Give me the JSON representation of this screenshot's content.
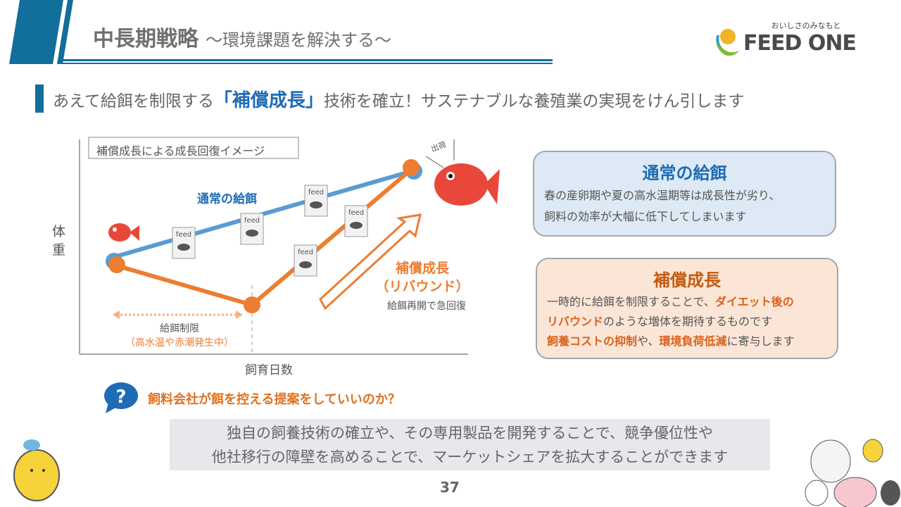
{
  "header": {
    "title": "中長期戦略",
    "subtitle": "～環境課題を解決する～",
    "logo_tagline": "おいしさのみなもと",
    "logo_text": "FEED ONE"
  },
  "headline": {
    "before": "あえて給餌を制限する",
    "highlight": "「補償成長」",
    "after": "技術を確立！サステナブルな養殖業の実現をけん引します"
  },
  "diagram": {
    "title": "補償成長による成長回復イメージ",
    "y_label": "体重",
    "x_label": "飼育日数",
    "normal_label": "通常の給餌",
    "comp_label": "補償成長",
    "comp_sub": "（リバウンド）",
    "comp_note": "給餌再開で急回復",
    "restrict_label": "給餌制限",
    "restrict_note": "（高水温や赤潮発生中）",
    "ship_label": "出荷",
    "feed_bag": "feed"
  },
  "normal_box": {
    "title": "通常の給餌",
    "line1": "春の産卵期や夏の高水温期等は成長性が劣り、",
    "line2": "飼料の効率が大幅に低下してしまいます"
  },
  "comp_box": {
    "title": "補償成長",
    "l1a": "一時的に給餌を制限することで、",
    "l1b": "ダイエット後の",
    "l2a": "リバウンド",
    "l2b": "のような増体を期待するものです",
    "l3a": "飼養コストの抑制",
    "l3b": "や、",
    "l3c": "環境負荷低減",
    "l3d": "に寄与します"
  },
  "question": {
    "text": "飼料会社が餌を控える提案をしていいのか？"
  },
  "answer": {
    "line1": "独自の飼養技術の確立や、その専用製品を開発することで、競争優位性や",
    "line2": "他社移行の障壁を高めることで、マーケットシェアを拡大することができます"
  },
  "page_number": "37",
  "colors": {
    "blue": "#1f6bb5",
    "line_blue": "#5b9bd5",
    "orange": "#ed7d31",
    "header_blue": "#126e9b"
  }
}
